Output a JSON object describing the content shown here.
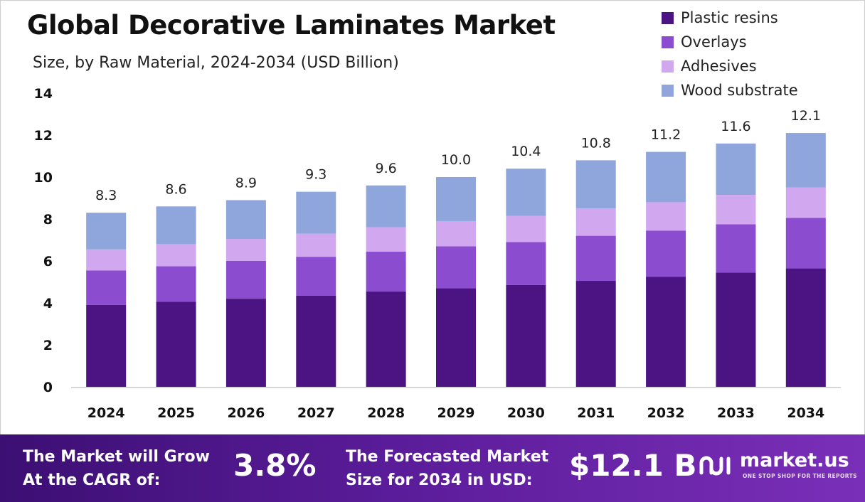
{
  "title": "Global Decorative Laminates Market",
  "subtitle": "Size, by Raw Material, 2024-2034 (USD Billion)",
  "legend": [
    {
      "label": "Plastic resins",
      "color": "#4b1482"
    },
    {
      "label": "Overlays",
      "color": "#8b4ccf"
    },
    {
      "label": "Adhesives",
      "color": "#d1a8ef"
    },
    {
      "label": "Wood substrate",
      "color": "#8fa6dc"
    }
  ],
  "chart_data": {
    "type": "bar",
    "stacked": true,
    "categories": [
      "2024",
      "2025",
      "2026",
      "2027",
      "2028",
      "2029",
      "2030",
      "2031",
      "2032",
      "2033",
      "2034"
    ],
    "series": [
      {
        "name": "Plastic resins",
        "color": "#4b1482",
        "values": [
          3.9,
          4.05,
          4.2,
          4.35,
          4.55,
          4.7,
          4.85,
          5.05,
          5.25,
          5.45,
          5.65
        ]
      },
      {
        "name": "Overlays",
        "color": "#8b4ccf",
        "values": [
          1.65,
          1.7,
          1.8,
          1.85,
          1.9,
          2.0,
          2.05,
          2.15,
          2.2,
          2.3,
          2.4
        ]
      },
      {
        "name": "Adhesives",
        "color": "#d1a8ef",
        "values": [
          1.0,
          1.05,
          1.05,
          1.1,
          1.15,
          1.2,
          1.25,
          1.3,
          1.35,
          1.4,
          1.45
        ]
      },
      {
        "name": "Wood substrate",
        "color": "#8fa6dc",
        "values": [
          1.75,
          1.8,
          1.85,
          2.0,
          2.0,
          2.1,
          2.25,
          2.3,
          2.4,
          2.45,
          2.6
        ]
      }
    ],
    "totals": [
      "8.3",
      "8.6",
      "8.9",
      "9.3",
      "9.6",
      "10.0",
      "10.4",
      "10.8",
      "11.2",
      "11.6",
      "12.1"
    ],
    "yticks": [
      "0",
      "2",
      "4",
      "6",
      "8",
      "10",
      "12",
      "14"
    ],
    "ylim": [
      0,
      14
    ],
    "grid": false,
    "legend_position": "top-right"
  },
  "footer": {
    "cagr_label_line1": "The Market will Grow",
    "cagr_label_line2": "At the CAGR of:",
    "cagr_value": "3.8%",
    "forecast_label_line1": "The Forecasted Market",
    "forecast_label_line2": "Size for 2034 in USD:",
    "forecast_value": "$12.1 B",
    "brand_name": "market.us",
    "brand_tagline": "ONE STOP SHOP FOR THE REPORTS"
  }
}
